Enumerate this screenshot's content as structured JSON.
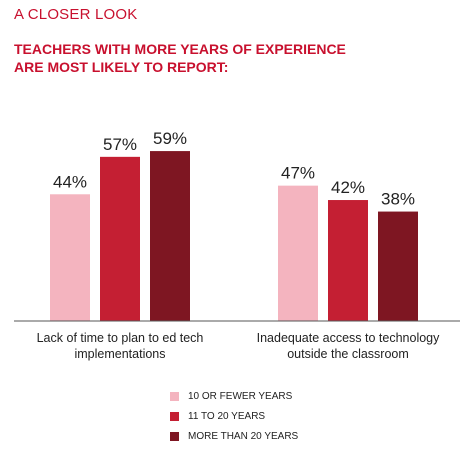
{
  "header": {
    "eyebrow": "A CLOSER LOOK",
    "headline_line1": "TEACHERS WITH MORE YEARS OF EXPERIENCE",
    "headline_line2": "ARE MOST LIKELY TO REPORT:"
  },
  "colors": {
    "accent": "#c8102e",
    "series": [
      "#f4b4bf",
      "#c41f33",
      "#7e1622"
    ],
    "baseline": "#555555"
  },
  "chart_data": {
    "type": "bar",
    "categories": [
      [
        "Lack of time to plan to ed tech",
        "implementations"
      ],
      [
        "Inadequate access to technology",
        "outside the classroom"
      ]
    ],
    "series": [
      {
        "name": "10 OR FEWER YEARS",
        "values": [
          44,
          47
        ]
      },
      {
        "name": "11 TO 20 YEARS",
        "values": [
          57,
          42
        ]
      },
      {
        "name": "MORE THAN 20 YEARS",
        "values": [
          59,
          38
        ]
      }
    ],
    "value_suffix": "%",
    "ylim": [
      0,
      100
    ],
    "grid": false,
    "legend": "bottom-center"
  }
}
